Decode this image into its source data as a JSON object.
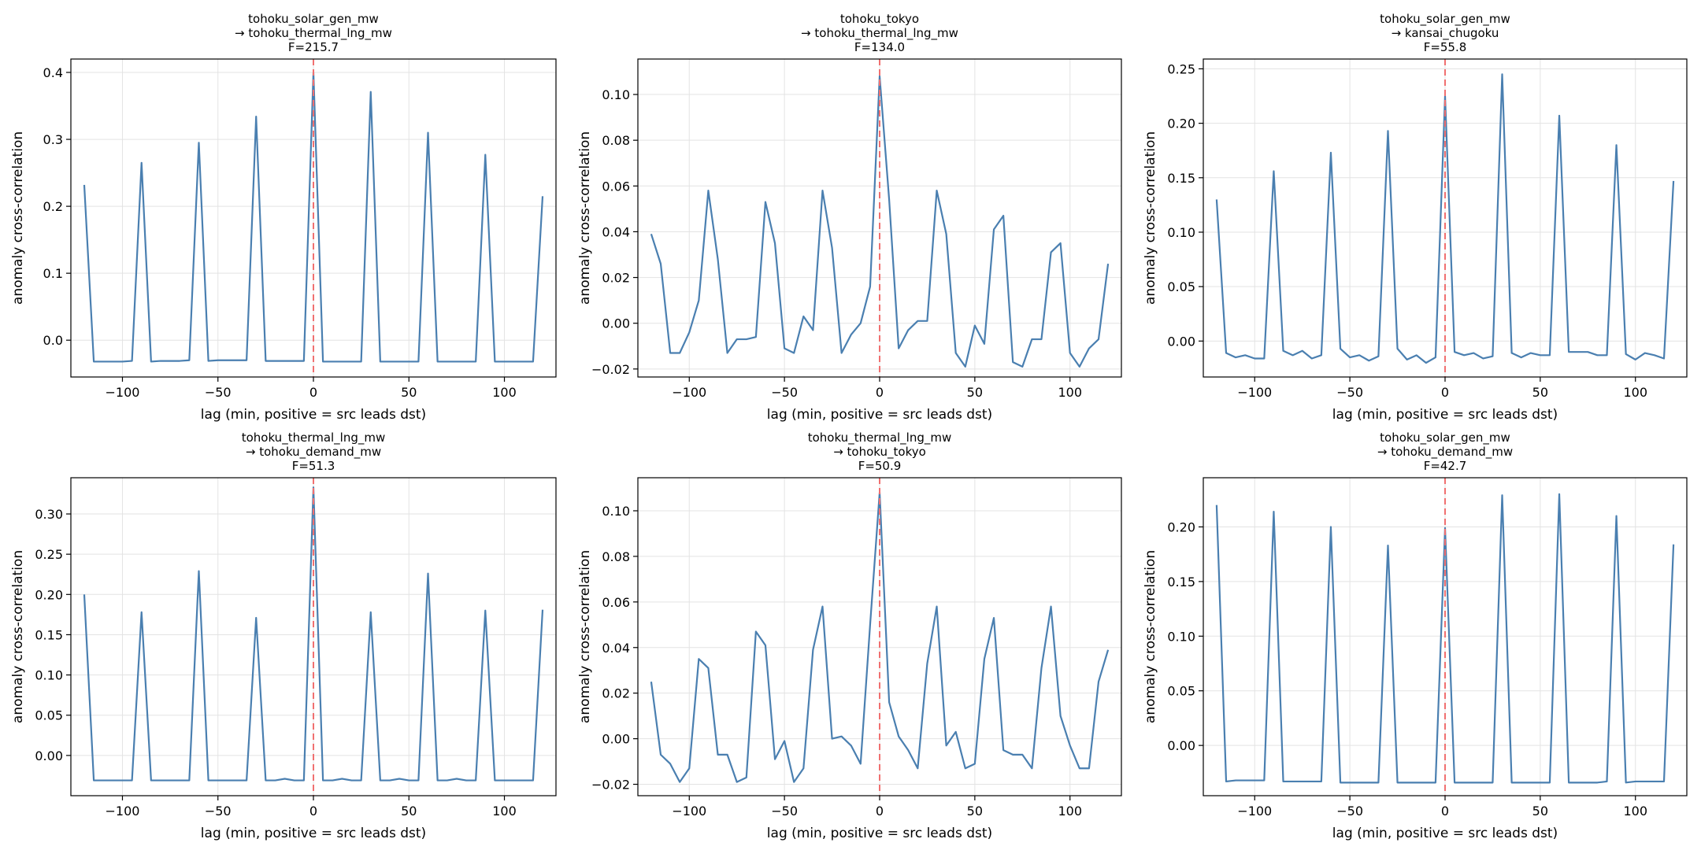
{
  "figure": {
    "background": "#ffffff",
    "line_color": "#4a7fb0",
    "zero_line_color": "#f07070",
    "grid": true
  },
  "chart_data": [
    {
      "type": "line",
      "title_lines": [
        "tohoku_solar_gen_mw",
        "→ tohoku_thermal_lng_mw",
        "F=215.7"
      ],
      "xlabel": "lag (min, positive = src leads dst)",
      "ylabel": "anomaly cross-correlation",
      "xlim": [
        -127,
        127
      ],
      "ylim": [
        -0.055,
        0.42
      ],
      "xticks": [
        -100,
        -50,
        0,
        50,
        100
      ],
      "xtick_labels": [
        "−100",
        "−50",
        "0",
        "50",
        "100"
      ],
      "yticks": [
        0.0,
        0.1,
        0.2,
        0.3,
        0.4
      ],
      "ytick_labels": [
        "0.0",
        "0.1",
        "0.2",
        "0.3",
        "0.4"
      ],
      "x": [
        -120,
        -115,
        -110,
        -105,
        -100,
        -95,
        -90,
        -85,
        -80,
        -75,
        -70,
        -65,
        -60,
        -55,
        -50,
        -45,
        -40,
        -35,
        -30,
        -25,
        -20,
        -15,
        -10,
        -5,
        0,
        5,
        10,
        15,
        20,
        25,
        30,
        35,
        40,
        45,
        50,
        55,
        60,
        65,
        70,
        75,
        80,
        85,
        90,
        95,
        100,
        105,
        110,
        115,
        120
      ],
      "y": [
        0.232,
        -0.032,
        -0.032,
        -0.032,
        -0.032,
        -0.031,
        0.265,
        -0.032,
        -0.031,
        -0.031,
        -0.031,
        -0.03,
        0.295,
        -0.031,
        -0.03,
        -0.03,
        -0.03,
        -0.03,
        0.334,
        -0.031,
        -0.031,
        -0.031,
        -0.031,
        -0.031,
        0.4,
        -0.032,
        -0.032,
        -0.032,
        -0.032,
        -0.032,
        0.371,
        -0.032,
        -0.032,
        -0.032,
        -0.032,
        -0.032,
        0.31,
        -0.032,
        -0.032,
        -0.032,
        -0.032,
        -0.032,
        0.277,
        -0.032,
        -0.032,
        -0.032,
        -0.032,
        -0.032,
        0.215
      ]
    },
    {
      "type": "line",
      "title_lines": [
        "tohoku_tokyo",
        "→ tohoku_thermal_lng_mw",
        "F=134.0"
      ],
      "xlabel": "lag (min, positive = src leads dst)",
      "ylabel": "anomaly cross-correlation",
      "xlim": [
        -127,
        127
      ],
      "ylim": [
        -0.0235,
        0.1155
      ],
      "xticks": [
        -100,
        -50,
        0,
        50,
        100
      ],
      "xtick_labels": [
        "−100",
        "−50",
        "0",
        "50",
        "100"
      ],
      "yticks": [
        -0.02,
        0.0,
        0.02,
        0.04,
        0.06,
        0.08,
        0.1
      ],
      "ytick_labels": [
        "−0.02",
        "0.00",
        "0.02",
        "0.04",
        "0.06",
        "0.08",
        "0.10"
      ],
      "x": [
        -120,
        -115,
        -110,
        -105,
        -100,
        -95,
        -90,
        -85,
        -80,
        -75,
        -70,
        -65,
        -60,
        -55,
        -50,
        -45,
        -40,
        -35,
        -30,
        -25,
        -20,
        -15,
        -10,
        -5,
        0,
        5,
        10,
        15,
        20,
        25,
        30,
        35,
        40,
        45,
        50,
        55,
        60,
        65,
        70,
        75,
        80,
        85,
        90,
        95,
        100,
        105,
        110,
        115,
        120
      ],
      "y": [
        0.039,
        0.026,
        -0.013,
        -0.013,
        -0.004,
        0.01,
        0.058,
        0.028,
        -0.013,
        -0.007,
        -0.007,
        -0.006,
        0.053,
        0.035,
        -0.011,
        -0.013,
        0.003,
        -0.003,
        0.058,
        0.033,
        -0.013,
        -0.005,
        0.0,
        0.016,
        0.108,
        0.054,
        -0.011,
        -0.003,
        0.001,
        0.001,
        0.058,
        0.039,
        -0.013,
        -0.019,
        -0.001,
        -0.009,
        0.041,
        0.047,
        -0.017,
        -0.019,
        -0.007,
        -0.007,
        0.031,
        0.035,
        -0.013,
        -0.019,
        -0.011,
        -0.007,
        0.026
      ]
    },
    {
      "type": "line",
      "title_lines": [
        "tohoku_solar_gen_mw",
        "→ kansai_chugoku",
        "F=55.8"
      ],
      "xlabel": "lag (min, positive = src leads dst)",
      "ylabel": "anomaly cross-correlation",
      "xlim": [
        -127,
        127
      ],
      "ylim": [
        -0.033,
        0.259
      ],
      "xticks": [
        -100,
        -50,
        0,
        50,
        100
      ],
      "xtick_labels": [
        "−100",
        "−50",
        "0",
        "50",
        "100"
      ],
      "yticks": [
        0.0,
        0.05,
        0.1,
        0.15,
        0.2,
        0.25
      ],
      "ytick_labels": [
        "0.00",
        "0.05",
        "0.10",
        "0.15",
        "0.20",
        "0.25"
      ],
      "x": [
        -120,
        -115,
        -110,
        -105,
        -100,
        -95,
        -90,
        -85,
        -80,
        -75,
        -70,
        -65,
        -60,
        -55,
        -50,
        -45,
        -40,
        -35,
        -30,
        -25,
        -20,
        -15,
        -10,
        -5,
        0,
        5,
        10,
        15,
        20,
        25,
        30,
        35,
        40,
        45,
        50,
        55,
        60,
        65,
        70,
        75,
        80,
        85,
        90,
        95,
        100,
        105,
        110,
        115,
        120
      ],
      "y": [
        0.13,
        -0.011,
        -0.015,
        -0.013,
        -0.016,
        -0.016,
        0.156,
        -0.009,
        -0.013,
        -0.009,
        -0.016,
        -0.013,
        0.173,
        -0.007,
        -0.015,
        -0.013,
        -0.018,
        -0.014,
        0.193,
        -0.007,
        -0.017,
        -0.013,
        -0.02,
        -0.015,
        0.225,
        -0.01,
        -0.013,
        -0.011,
        -0.016,
        -0.014,
        0.245,
        -0.011,
        -0.015,
        -0.011,
        -0.013,
        -0.013,
        0.207,
        -0.01,
        -0.01,
        -0.01,
        -0.013,
        -0.013,
        0.18,
        -0.012,
        -0.017,
        -0.011,
        -0.013,
        -0.016,
        0.147
      ]
    },
    {
      "type": "line",
      "title_lines": [
        "tohoku_thermal_lng_mw",
        "→ tohoku_demand_mw",
        "F=51.3"
      ],
      "xlabel": "lag (min, positive = src leads dst)",
      "ylabel": "anomaly cross-correlation",
      "xlim": [
        -127,
        127
      ],
      "ylim": [
        -0.05,
        0.345
      ],
      "xticks": [
        -100,
        -50,
        0,
        50,
        100
      ],
      "xtick_labels": [
        "−100",
        "−50",
        "0",
        "50",
        "100"
      ],
      "yticks": [
        0.0,
        0.05,
        0.1,
        0.15,
        0.2,
        0.25,
        0.3
      ],
      "ytick_labels": [
        "0.00",
        "0.05",
        "0.10",
        "0.15",
        "0.20",
        "0.25",
        "0.30"
      ],
      "x": [
        -120,
        -115,
        -110,
        -105,
        -100,
        -95,
        -90,
        -85,
        -80,
        -75,
        -70,
        -65,
        -60,
        -55,
        -50,
        -45,
        -40,
        -35,
        -30,
        -25,
        -20,
        -15,
        -10,
        -5,
        0,
        5,
        10,
        15,
        20,
        25,
        30,
        35,
        40,
        45,
        50,
        55,
        60,
        65,
        70,
        75,
        80,
        85,
        90,
        95,
        100,
        105,
        110,
        115,
        120
      ],
      "y": [
        0.2,
        -0.031,
        -0.031,
        -0.031,
        -0.031,
        -0.031,
        0.178,
        -0.031,
        -0.031,
        -0.031,
        -0.031,
        -0.031,
        0.229,
        -0.031,
        -0.031,
        -0.031,
        -0.031,
        -0.031,
        0.171,
        -0.031,
        -0.031,
        -0.029,
        -0.031,
        -0.031,
        0.333,
        -0.031,
        -0.031,
        -0.029,
        -0.031,
        -0.031,
        0.178,
        -0.031,
        -0.031,
        -0.029,
        -0.031,
        -0.031,
        0.226,
        -0.031,
        -0.031,
        -0.029,
        -0.031,
        -0.031,
        0.18,
        -0.031,
        -0.031,
        -0.031,
        -0.031,
        -0.031,
        0.181
      ]
    },
    {
      "type": "line",
      "title_lines": [
        "tohoku_thermal_lng_mw",
        "→ tohoku_tokyo",
        "F=50.9"
      ],
      "xlabel": "lag (min, positive = src leads dst)",
      "ylabel": "anomaly cross-correlation",
      "xlim": [
        -127,
        127
      ],
      "ylim": [
        -0.025,
        0.1145
      ],
      "xticks": [
        -100,
        -50,
        0,
        50,
        100
      ],
      "xtick_labels": [
        "−100",
        "−50",
        "0",
        "50",
        "100"
      ],
      "yticks": [
        -0.02,
        0.0,
        0.02,
        0.04,
        0.06,
        0.08,
        0.1
      ],
      "ytick_labels": [
        "−0.02",
        "0.00",
        "0.02",
        "0.04",
        "0.06",
        "0.08",
        "0.10"
      ],
      "x": [
        -120,
        -115,
        -110,
        -105,
        -100,
        -95,
        -90,
        -85,
        -80,
        -75,
        -70,
        -65,
        -60,
        -55,
        -50,
        -45,
        -40,
        -35,
        -30,
        -25,
        -20,
        -15,
        -10,
        -5,
        0,
        5,
        10,
        15,
        20,
        25,
        30,
        35,
        40,
        45,
        50,
        55,
        60,
        65,
        70,
        75,
        80,
        85,
        90,
        95,
        100,
        105,
        110,
        115,
        120
      ],
      "y": [
        0.025,
        -0.007,
        -0.011,
        -0.019,
        -0.013,
        0.035,
        0.031,
        -0.007,
        -0.007,
        -0.019,
        -0.017,
        0.047,
        0.041,
        -0.009,
        -0.001,
        -0.019,
        -0.013,
        0.039,
        0.058,
        0.0,
        0.001,
        -0.003,
        -0.011,
        0.05,
        0.108,
        0.016,
        0.001,
        -0.005,
        -0.013,
        0.033,
        0.058,
        -0.003,
        0.003,
        -0.013,
        -0.011,
        0.035,
        0.053,
        -0.005,
        -0.007,
        -0.007,
        -0.013,
        0.031,
        0.058,
        0.01,
        -0.003,
        -0.013,
        -0.013,
        0.025,
        0.039
      ]
    },
    {
      "type": "line",
      "title_lines": [
        "tohoku_solar_gen_mw",
        "→ tohoku_demand_mw",
        "F=42.7"
      ],
      "xlabel": "lag (min, positive = src leads dst)",
      "ylabel": "anomaly cross-correlation",
      "xlim": [
        -127,
        127
      ],
      "ylim": [
        -0.046,
        0.245
      ],
      "xticks": [
        -100,
        -50,
        0,
        50,
        100
      ],
      "xtick_labels": [
        "−100",
        "−50",
        "0",
        "50",
        "100"
      ],
      "yticks": [
        0.0,
        0.05,
        0.1,
        0.15,
        0.2
      ],
      "ytick_labels": [
        "0.00",
        "0.05",
        "0.10",
        "0.15",
        "0.20"
      ],
      "x": [
        -120,
        -115,
        -110,
        -105,
        -100,
        -95,
        -90,
        -85,
        -80,
        -75,
        -70,
        -65,
        -60,
        -55,
        -50,
        -45,
        -40,
        -35,
        -30,
        -25,
        -20,
        -15,
        -10,
        -5,
        0,
        5,
        10,
        15,
        20,
        25,
        30,
        35,
        40,
        45,
        50,
        55,
        60,
        65,
        70,
        75,
        80,
        85,
        90,
        95,
        100,
        105,
        110,
        115,
        120
      ],
      "y": [
        0.22,
        -0.033,
        -0.032,
        -0.032,
        -0.032,
        -0.032,
        0.214,
        -0.033,
        -0.033,
        -0.033,
        -0.033,
        -0.033,
        0.2,
        -0.034,
        -0.034,
        -0.034,
        -0.034,
        -0.034,
        0.183,
        -0.034,
        -0.034,
        -0.034,
        -0.034,
        -0.034,
        0.199,
        -0.034,
        -0.034,
        -0.034,
        -0.034,
        -0.034,
        0.229,
        -0.034,
        -0.034,
        -0.034,
        -0.034,
        -0.034,
        0.23,
        -0.034,
        -0.034,
        -0.034,
        -0.034,
        -0.033,
        0.21,
        -0.034,
        -0.033,
        -0.033,
        -0.033,
        -0.033,
        0.184
      ]
    }
  ]
}
